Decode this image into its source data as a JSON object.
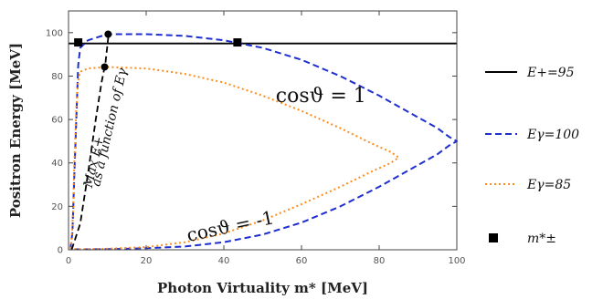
{
  "chart_data": {
    "type": "line",
    "xlabel": "Photon Virtuality  m* [MeV]",
    "ylabel": "Positron Energy [MeV]",
    "xlim": [
      0,
      100
    ],
    "ylim": [
      0,
      110
    ],
    "x_ticks": [
      0,
      20,
      40,
      60,
      80,
      100
    ],
    "y_ticks": [
      0,
      20,
      40,
      60,
      80,
      100
    ],
    "x_tick_labels": [
      "0",
      "20",
      "40",
      "60",
      "80",
      "100"
    ],
    "y_tick_labels": [
      "0",
      "20",
      "40",
      "60",
      "80",
      "100"
    ],
    "grid": false,
    "legend_position": "right",
    "series": [
      {
        "name": "E+=95",
        "color": "#000000",
        "style": "solid",
        "points": [
          [
            0,
            95
          ],
          [
            100,
            95
          ]
        ]
      },
      {
        "name": "Eγ=100",
        "color": "#1f2fcf",
        "style": "dashed",
        "points": [
          [
            0.5,
            0.5
          ],
          [
            1,
            8
          ],
          [
            1.5,
            35
          ],
          [
            2,
            60
          ],
          [
            2.5,
            85
          ],
          [
            3,
            93
          ],
          [
            5,
            96.5
          ],
          [
            10,
            99.3
          ],
          [
            20,
            99.3
          ],
          [
            30,
            98.5
          ],
          [
            40,
            96.5
          ],
          [
            50,
            93
          ],
          [
            60,
            87.5
          ],
          [
            70,
            80
          ],
          [
            80,
            71
          ],
          [
            90,
            61
          ],
          [
            95,
            56
          ],
          [
            98,
            52
          ],
          [
            100,
            50
          ],
          [
            98,
            48
          ],
          [
            95,
            44
          ],
          [
            90,
            39
          ],
          [
            80,
            29
          ],
          [
            70,
            20
          ],
          [
            60,
            12.5
          ],
          [
            50,
            7
          ],
          [
            40,
            3.5
          ],
          [
            30,
            1.5
          ],
          [
            20,
            0.7
          ],
          [
            10,
            0.3
          ],
          [
            5,
            0.2
          ],
          [
            2,
            0.2
          ],
          [
            1,
            0.2
          ],
          [
            0.5,
            0.5
          ]
        ]
      },
      {
        "name": "Eγ=85",
        "color": "#ff8c1a",
        "style": "dotted",
        "points": [
          [
            0.5,
            0.5
          ],
          [
            1,
            10
          ],
          [
            1.5,
            40
          ],
          [
            2,
            65
          ],
          [
            2.5,
            78
          ],
          [
            3,
            82
          ],
          [
            5,
            83.5
          ],
          [
            10,
            84.2
          ],
          [
            20,
            83.5
          ],
          [
            30,
            81
          ],
          [
            40,
            77
          ],
          [
            50,
            71
          ],
          [
            60,
            64
          ],
          [
            70,
            56
          ],
          [
            78,
            49
          ],
          [
            83,
            45
          ],
          [
            85,
            42.5
          ],
          [
            83,
            40
          ],
          [
            78,
            36
          ],
          [
            70,
            29
          ],
          [
            60,
            21
          ],
          [
            50,
            13.5
          ],
          [
            40,
            7.5
          ],
          [
            30,
            3.5
          ],
          [
            20,
            1.2
          ],
          [
            10,
            0.5
          ],
          [
            5,
            0.3
          ],
          [
            2,
            0.3
          ],
          [
            1,
            0.3
          ],
          [
            0.5,
            0.5
          ]
        ]
      },
      {
        "name": "Max E+ as a function of Eγ",
        "color": "#000000",
        "style": "dashed",
        "points": [
          [
            0.8,
            0
          ],
          [
            3,
            12
          ],
          [
            5,
            35
          ],
          [
            7,
            60
          ],
          [
            8.5,
            77
          ],
          [
            9.5,
            86
          ],
          [
            10.3,
            99
          ]
        ]
      }
    ],
    "markers": [
      {
        "name": "m*±",
        "shape": "square",
        "color": "#000000",
        "points": [
          [
            2.5,
            95.5
          ],
          [
            43.5,
            95.5
          ]
        ]
      },
      {
        "shape": "circle",
        "color": "#000000",
        "points": [
          [
            10.2,
            99.3
          ],
          [
            9.3,
            84.2
          ]
        ]
      }
    ],
    "legend": [
      {
        "series": 0,
        "label": "E+=95"
      },
      {
        "series": 1,
        "label": "Eγ=100"
      },
      {
        "series": 2,
        "label": "Eγ=85"
      },
      {
        "marker": 0,
        "label": "m*±"
      }
    ],
    "annotations": [
      {
        "text": "cosϑ = 1",
        "x": 65,
        "y": 68,
        "rotation": 0
      },
      {
        "text": "cosϑ = -1",
        "x": 42,
        "y": 8,
        "rotation": -12
      },
      {
        "text": "Max E+",
        "x": 7.5,
        "y": 40,
        "rotation": -77
      },
      {
        "text": "as a function of Eγ",
        "x": 11.5,
        "y": 56,
        "rotation": -77
      }
    ]
  }
}
